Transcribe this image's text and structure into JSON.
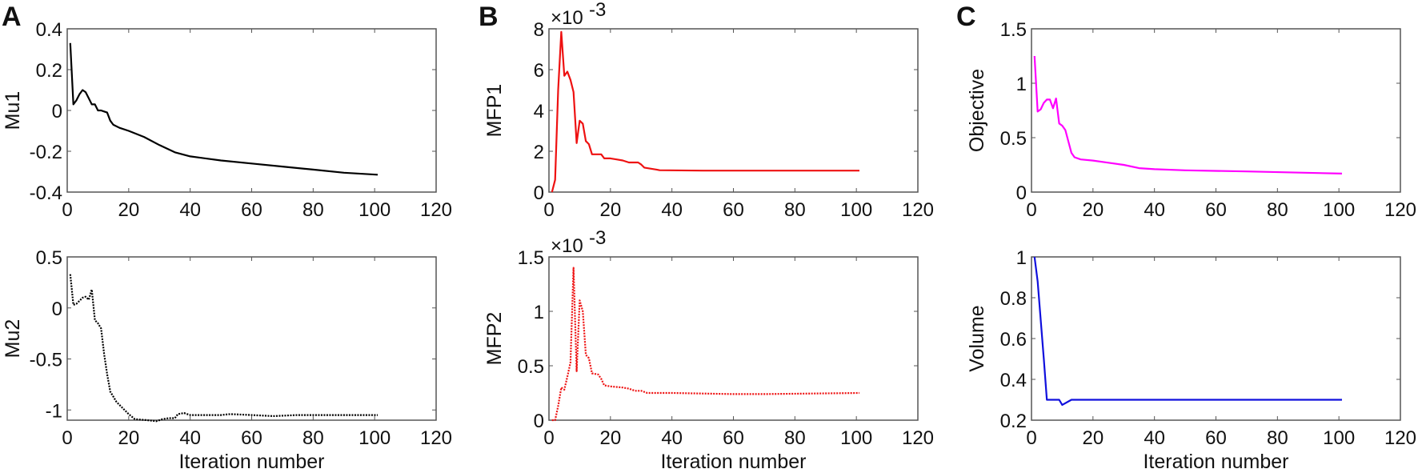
{
  "panel_letters": [
    "A",
    "B",
    "C"
  ],
  "chart_data": [
    {
      "type": "line",
      "panel": "A",
      "ylabel": "Mu1",
      "xlabel": "",
      "color": "#000000",
      "dash": "solid",
      "xlim": [
        0,
        120
      ],
      "ylim": [
        -0.4,
        0.4
      ],
      "xticks": [
        0,
        20,
        40,
        60,
        80,
        100,
        120
      ],
      "xtick_labels": [
        "0",
        "20",
        "40",
        "60",
        "80",
        "100",
        "120"
      ],
      "yticks": [
        -0.4,
        -0.2,
        0,
        0.2,
        0.4
      ],
      "ytick_labels": [
        "-0.4",
        "-0.2",
        "0",
        "0.2",
        "0.4"
      ],
      "x": [
        1,
        2,
        3,
        4,
        5,
        6,
        7,
        8,
        9,
        10,
        11,
        12,
        13,
        14,
        15,
        17,
        20,
        25,
        30,
        35,
        40,
        50,
        60,
        70,
        80,
        90,
        101
      ],
      "y": [
        0.33,
        0.03,
        0.05,
        0.08,
        0.1,
        0.09,
        0.06,
        0.03,
        0.03,
        0.0,
        0.0,
        -0.005,
        -0.01,
        -0.05,
        -0.07,
        -0.085,
        -0.1,
        -0.13,
        -0.17,
        -0.205,
        -0.225,
        -0.245,
        -0.26,
        -0.275,
        -0.29,
        -0.305,
        -0.315
      ]
    },
    {
      "type": "line",
      "panel": "A",
      "ylabel": "Mu2",
      "xlabel": "Iteration number",
      "color": "#000000",
      "dash": "dotted",
      "xlim": [
        0,
        120
      ],
      "ylim": [
        -1.1,
        0.5
      ],
      "xticks": [
        0,
        20,
        40,
        60,
        80,
        100,
        120
      ],
      "xtick_labels": [
        "0",
        "20",
        "40",
        "60",
        "80",
        "100",
        "120"
      ],
      "yticks": [
        -1,
        -0.5,
        0,
        0.5
      ],
      "ytick_labels": [
        "-1",
        "-0.5",
        "0",
        "0.5"
      ],
      "x": [
        1,
        2,
        3,
        4,
        5,
        6,
        7,
        8,
        9,
        10,
        11,
        12,
        13,
        14,
        16,
        18,
        20,
        22,
        26,
        29,
        31,
        33,
        35,
        36,
        38,
        40,
        50,
        53,
        60,
        67,
        75,
        101
      ],
      "y": [
        0.33,
        0.03,
        0.04,
        0.07,
        0.1,
        0.11,
        0.08,
        0.18,
        -0.12,
        -0.15,
        -0.2,
        -0.45,
        -0.65,
        -0.82,
        -0.92,
        -0.98,
        -1.04,
        -1.09,
        -1.1,
        -1.11,
        -1.09,
        -1.08,
        -1.08,
        -1.04,
        -1.03,
        -1.05,
        -1.05,
        -1.04,
        -1.05,
        -1.06,
        -1.05,
        -1.05
      ]
    },
    {
      "type": "line",
      "panel": "B",
      "ylabel": "MFP1",
      "xlabel": "",
      "color": "#ee1111",
      "dash": "solid",
      "exponent_base": "×10",
      "exponent_power": "-3",
      "xlim": [
        0,
        120
      ],
      "ylim": [
        0,
        8
      ],
      "xticks": [
        0,
        20,
        40,
        60,
        80,
        100,
        120
      ],
      "xtick_labels": [
        "0",
        "20",
        "40",
        "60",
        "80",
        "100",
        "120"
      ],
      "yticks": [
        0,
        2,
        4,
        6,
        8
      ],
      "ytick_labels": [
        "0",
        "2",
        "4",
        "6",
        "8"
      ],
      "x": [
        1,
        2,
        3,
        4,
        5,
        6,
        7,
        8,
        9,
        10,
        11,
        12,
        13,
        14,
        17,
        18,
        20,
        22,
        24,
        26,
        29,
        30,
        31,
        33,
        35,
        36,
        50,
        101
      ],
      "y": [
        0,
        0.6,
        5,
        7.85,
        5.7,
        5.9,
        5.5,
        4.9,
        2.4,
        3.5,
        3.35,
        2.5,
        2.35,
        1.85,
        1.85,
        1.65,
        1.65,
        1.6,
        1.55,
        1.45,
        1.45,
        1.35,
        1.2,
        1.15,
        1.1,
        1.07,
        1.05,
        1.05
      ]
    },
    {
      "type": "line",
      "panel": "B",
      "ylabel": "MFP2",
      "xlabel": "Iteration number",
      "color": "#ee1111",
      "dash": "dotted",
      "exponent_base": "×10",
      "exponent_power": "-3",
      "xlim": [
        0,
        120
      ],
      "ylim": [
        0,
        1.5
      ],
      "xticks": [
        0,
        20,
        40,
        60,
        80,
        100,
        120
      ],
      "xtick_labels": [
        "0",
        "20",
        "40",
        "60",
        "80",
        "100",
        "120"
      ],
      "yticks": [
        0,
        0.5,
        1,
        1.5
      ],
      "ytick_labels": [
        "0",
        "0.5",
        "1",
        "1.5"
      ],
      "x": [
        1,
        2,
        3,
        4,
        5,
        6,
        7,
        8,
        9,
        10,
        11,
        12,
        13,
        14,
        16,
        17,
        18,
        20,
        24,
        26,
        28,
        30,
        32,
        40,
        60,
        70,
        101
      ],
      "y": [
        0,
        0,
        0.13,
        0.3,
        0.28,
        0.4,
        0.53,
        1.4,
        0.45,
        1.1,
        1.0,
        0.6,
        0.57,
        0.43,
        0.42,
        0.38,
        0.32,
        0.31,
        0.3,
        0.29,
        0.27,
        0.27,
        0.25,
        0.25,
        0.24,
        0.24,
        0.25
      ]
    },
    {
      "type": "line",
      "panel": "C",
      "ylabel": "Objective",
      "xlabel": "",
      "color": "#ff00ff",
      "dash": "solid",
      "xlim": [
        0,
        120
      ],
      "ylim": [
        0,
        1.5
      ],
      "xticks": [
        0,
        20,
        40,
        60,
        80,
        100,
        120
      ],
      "xtick_labels": [
        "0",
        "20",
        "40",
        "60",
        "80",
        "100",
        "120"
      ],
      "yticks": [
        0,
        0.5,
        1,
        1.5
      ],
      "ytick_labels": [
        "0",
        "0.5",
        "1",
        "1.5"
      ],
      "x": [
        1,
        2,
        3,
        4,
        5,
        6,
        7,
        8,
        9,
        10,
        11,
        13,
        14,
        16,
        20,
        25,
        30,
        35,
        40,
        50,
        70,
        101
      ],
      "y": [
        1.25,
        0.74,
        0.76,
        0.82,
        0.85,
        0.85,
        0.77,
        0.86,
        0.63,
        0.61,
        0.57,
        0.36,
        0.32,
        0.3,
        0.29,
        0.27,
        0.25,
        0.22,
        0.21,
        0.2,
        0.19,
        0.17
      ]
    },
    {
      "type": "line",
      "panel": "C",
      "ylabel": "Volume",
      "xlabel": "Iteration number",
      "color": "#1010dd",
      "dash": "solid",
      "xlim": [
        0,
        120
      ],
      "ylim": [
        0.2,
        1
      ],
      "xticks": [
        0,
        20,
        40,
        60,
        80,
        100,
        120
      ],
      "xtick_labels": [
        "0",
        "20",
        "40",
        "60",
        "80",
        "100",
        "120"
      ],
      "yticks": [
        0.2,
        0.4,
        0.6,
        0.8,
        1
      ],
      "ytick_labels": [
        "0.2",
        "0.4",
        "0.6",
        "0.8",
        "1"
      ],
      "x": [
        1,
        2,
        4,
        5,
        9,
        10,
        13,
        101
      ],
      "y": [
        1.0,
        0.88,
        0.5,
        0.3,
        0.3,
        0.275,
        0.3,
        0.3
      ]
    }
  ]
}
